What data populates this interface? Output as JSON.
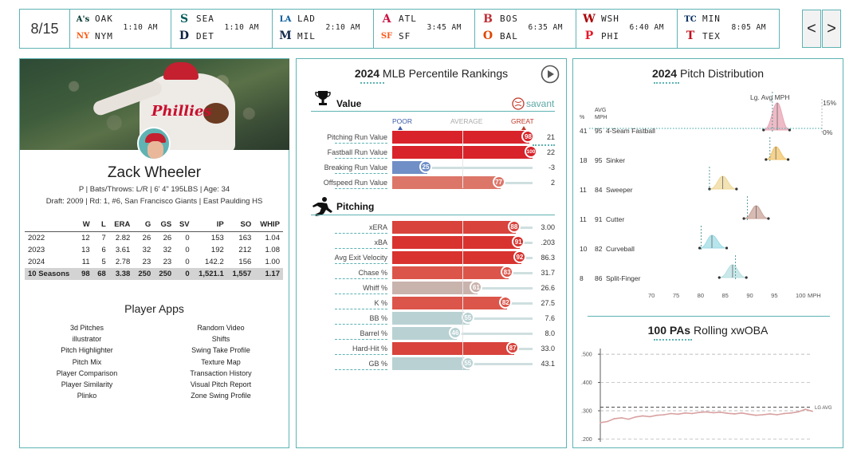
{
  "scoreboard": {
    "date": "8/15",
    "games": [
      {
        "away": "OAK",
        "home": "NYM",
        "time": "1:10 AM",
        "away_color": "#003831",
        "home_color": "#FF5910",
        "away_logo": "A's",
        "home_logo": "NY"
      },
      {
        "away": "SEA",
        "home": "DET",
        "time": "1:10 AM",
        "away_color": "#005C5C",
        "home_color": "#0C2340",
        "away_logo": "S",
        "home_logo": "D"
      },
      {
        "away": "LAD",
        "home": "MIL",
        "time": "2:10 AM",
        "away_color": "#005A9C",
        "home_color": "#12284B",
        "away_logo": "LA",
        "home_logo": "M"
      },
      {
        "away": "ATL",
        "home": "SF",
        "time": "3:45 AM",
        "away_color": "#CE1141",
        "home_color": "#FD5A1E",
        "away_logo": "A",
        "home_logo": "SF"
      },
      {
        "away": "BOS",
        "home": "BAL",
        "time": "6:35 AM",
        "away_color": "#BD3039",
        "home_color": "#DF4601",
        "away_logo": "B",
        "home_logo": "O"
      },
      {
        "away": "WSH",
        "home": "PHI",
        "time": "6:40 AM",
        "away_color": "#AB0003",
        "home_color": "#E81828",
        "away_logo": "W",
        "home_logo": "P"
      },
      {
        "away": "MIN",
        "home": "TEX",
        "time": "8:05 AM",
        "away_color": "#002B5C",
        "home_color": "#C0111F",
        "away_logo": "TC",
        "home_logo": "T"
      }
    ],
    "prev_label": "<",
    "next_label": ">"
  },
  "player": {
    "name": "Zack Wheeler",
    "info": "P | Bats/Throws: L/R | 6' 4\" 195LBS | Age: 34",
    "draft": "Draft: 2009 | Rd: 1, #6, San Francisco Giants | East Paulding HS",
    "photo_word": "Phillies",
    "stats_headers": [
      "",
      "W",
      "L",
      "ERA",
      "G",
      "GS",
      "SV",
      "IP",
      "SO",
      "WHIP"
    ],
    "stats_rows": [
      [
        "2022",
        "12",
        "7",
        "2.82",
        "26",
        "26",
        "0",
        "153",
        "163",
        "1.04"
      ],
      [
        "2023",
        "13",
        "6",
        "3.61",
        "32",
        "32",
        "0",
        "192",
        "212",
        "1.08"
      ],
      [
        "2024",
        "11",
        "5",
        "2.78",
        "23",
        "23",
        "0",
        "142.2",
        "156",
        "1.00"
      ],
      [
        "10 Seasons",
        "98",
        "68",
        "3.38",
        "250",
        "250",
        "0",
        "1,521.1",
        "1,557",
        "1.17"
      ]
    ],
    "apps_title": "Player Apps",
    "apps_left": [
      "3d Pitches",
      "illustrator",
      "Pitch Highlighter",
      "Pitch Mix",
      "Player Comparison",
      "Player Similarity",
      "Plinko"
    ],
    "apps_right": [
      "Random Video",
      "Shifts",
      "Swing Take Profile",
      "Texture Map",
      "Transaction History",
      "Visual Pitch Report",
      "Zone Swing Profile"
    ]
  },
  "percentiles": {
    "title_year": "2024",
    "title_rest": "MLB Percentile Rankings",
    "value_section": "Value",
    "savant_label": "savant",
    "scale_poor": "POOR",
    "scale_average": "AVERAGE",
    "scale_great": "GREAT",
    "value_rows": [
      {
        "label": "Pitching Run Value",
        "pct": 98,
        "value": "21",
        "color": "#d8232a"
      },
      {
        "label": "Fastball Run Value",
        "pct": 100,
        "value": "22",
        "color": "#d8232a"
      },
      {
        "label": "Breaking Run Value",
        "pct": 25,
        "value": "-3",
        "color": "#6f8fc6"
      },
      {
        "label": "Offspeed Run Value",
        "pct": 77,
        "value": "2",
        "color": "#dc7669"
      }
    ],
    "pitching_section": "Pitching",
    "pitching_rows": [
      {
        "label": "xERA",
        "pct": 88,
        "value": "3.00",
        "color": "#d8433c"
      },
      {
        "label": "xBA",
        "pct": 91,
        "value": ".203",
        "color": "#d8332f"
      },
      {
        "label": "Avg Exit Velocity",
        "pct": 92,
        "value": "86.3",
        "color": "#d8332f"
      },
      {
        "label": "Chase %",
        "pct": 83,
        "value": "31.7",
        "color": "#dc554a"
      },
      {
        "label": "Whiff %",
        "pct": 61,
        "value": "26.6",
        "color": "#c9b3ad"
      },
      {
        "label": "K %",
        "pct": 82,
        "value": "27.5",
        "color": "#dc554a"
      },
      {
        "label": "BB %",
        "pct": 55,
        "value": "7.6",
        "color": "#b9d1d3"
      },
      {
        "label": "Barrel %",
        "pct": 46,
        "value": "8.0",
        "color": "#b9d1d3"
      },
      {
        "label": "Hard-Hit %",
        "pct": 87,
        "value": "33.0",
        "color": "#d8433c"
      },
      {
        "label": "GB %",
        "pct": 55,
        "value": "43.1",
        "color": "#b9d1d3"
      }
    ]
  },
  "pitch_dist": {
    "title_year": "2024",
    "title_rest": "Pitch Distribution",
    "lg_avg_label": "Lg. Avg MPH",
    "pct_15": "15%",
    "pct_0": "0%",
    "col_pct": "%",
    "col_avg": "AVG",
    "col_mph": "MPH",
    "x_ticks": [
      "70",
      "75",
      "80",
      "85",
      "90",
      "95",
      "100"
    ],
    "x_unit": "MPH",
    "pitches": [
      {
        "pct": "41",
        "mph": "95",
        "name": "4-Seam Fastball",
        "color": "#e8a4b4",
        "center": 95.3,
        "lo": 92.5,
        "hi": 97.8,
        "lg": 94.3
      },
      {
        "pct": "18",
        "mph": "95",
        "name": "Sinker",
        "color": "#f2c46b",
        "center": 95.0,
        "lo": 93.0,
        "hi": 97.5,
        "lg": 93.8
      },
      {
        "pct": "11",
        "mph": "84",
        "name": "Sweeper",
        "color": "#efd89a",
        "center": 84.2,
        "lo": 81.5,
        "hi": 87.0,
        "lg": 81.5
      },
      {
        "pct": "11",
        "mph": "91",
        "name": "Cutter",
        "color": "#c9a49a",
        "center": 91.0,
        "lo": 88.5,
        "hi": 93.5,
        "lg": 89.2
      },
      {
        "pct": "10",
        "mph": "82",
        "name": "Curveball",
        "color": "#9fdce6",
        "center": 82.0,
        "lo": 79.5,
        "hi": 85.0,
        "lg": 79.8
      },
      {
        "pct": "8",
        "mph": "86",
        "name": "Split-Finger",
        "color": "#b8e0e2",
        "center": 86.2,
        "lo": 83.5,
        "hi": 89.0,
        "lg": 86.8
      }
    ]
  },
  "rolling": {
    "title_num": "100 PAs",
    "title_rest": "Rolling xwOBA",
    "y_ticks": [
      ".500",
      ".400",
      ".300",
      ".200"
    ],
    "lg_label": "LG AVG",
    "chart_data": {
      "type": "line",
      "ylim": [
        0.19,
        0.52
      ],
      "lg_avg": 0.313,
      "x": [
        0,
        1,
        2,
        3,
        4,
        5,
        6,
        7,
        8,
        9,
        10,
        11,
        12,
        13,
        14,
        15,
        16,
        17,
        18,
        19,
        20,
        21,
        22,
        23,
        24,
        25,
        26,
        27,
        28,
        29,
        30
      ],
      "series": [
        {
          "values": [
            0.258,
            0.262,
            0.272,
            0.275,
            0.27,
            0.278,
            0.282,
            0.279,
            0.284,
            0.286,
            0.29,
            0.288,
            0.292,
            0.29,
            0.294,
            0.296,
            0.293,
            0.295,
            0.291,
            0.289,
            0.292,
            0.288,
            0.284,
            0.286,
            0.289,
            0.286,
            0.29,
            0.292,
            0.296,
            0.305,
            0.298
          ]
        }
      ]
    }
  }
}
